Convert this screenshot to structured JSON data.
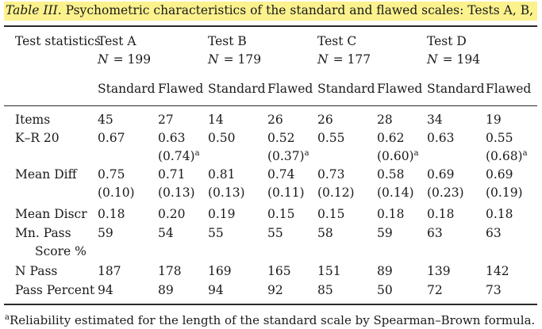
{
  "caption": {
    "label": "Table III.",
    "text": "Psychometric characteristics of the standard and flawed scales: Tests A, B, C, and D"
  },
  "header": {
    "stub": "Test statistics",
    "tests": [
      {
        "name": "Test A",
        "n_label": "N",
        "n_value": "= 199"
      },
      {
        "name": "Test B",
        "n_label": "N",
        "n_value": "= 179"
      },
      {
        "name": "Test C",
        "n_label": "N",
        "n_value": "= 177"
      },
      {
        "name": "Test D",
        "n_label": "N",
        "n_value": "= 194"
      }
    ],
    "subheads": [
      "Standard",
      "Flawed",
      "Standard",
      "Flawed",
      "Standard",
      "Flawed",
      "Standard",
      "Flawed"
    ]
  },
  "rows": [
    {
      "label": [
        "Items"
      ],
      "values": [
        "45",
        "27",
        "14",
        "26",
        "26",
        "28",
        "34",
        "19"
      ]
    },
    {
      "label": [
        "K–R 20"
      ],
      "values": [
        "0.67",
        "0.63",
        "0.50",
        "0.52",
        "0.55",
        "0.62",
        "0.63",
        "0.55"
      ],
      "extra": [
        "",
        "(0.74)",
        "",
        "(0.37)",
        "",
        "(0.60)",
        "",
        "(0.68)"
      ],
      "extra_sup": "a"
    },
    {
      "label": [
        "Mean Diff"
      ],
      "values": [
        "0.75",
        "0.71",
        "0.81",
        "0.74",
        "0.73",
        "0.58",
        "0.69",
        "0.69"
      ],
      "extra": [
        "(0.10)",
        "(0.13)",
        "(0.13)",
        "(0.11)",
        "(0.12)",
        "(0.14)",
        "(0.23)",
        "(0.19)"
      ]
    },
    {
      "label": [
        "Mean Discr"
      ],
      "values": [
        "0.18",
        "0.20",
        "0.19",
        "0.15",
        "0.15",
        "0.18",
        "0.18",
        "0.18"
      ]
    },
    {
      "label": [
        "Mn. Pass",
        "Score %"
      ],
      "values": [
        "59",
        "54",
        "55",
        "55",
        "58",
        "59",
        "63",
        "63"
      ]
    },
    {
      "label": [
        "N Pass"
      ],
      "values": [
        "187",
        "178",
        "169",
        "165",
        "151",
        "89",
        "139",
        "142"
      ]
    },
    {
      "label": [
        "Pass Percent"
      ],
      "values": [
        "94",
        "89",
        "94",
        "92",
        "85",
        "50",
        "72",
        "73"
      ]
    }
  ],
  "footnote": {
    "marker": "a",
    "text": "Reliability estimated for the length of the standard scale by Spearman–Brown formula."
  }
}
